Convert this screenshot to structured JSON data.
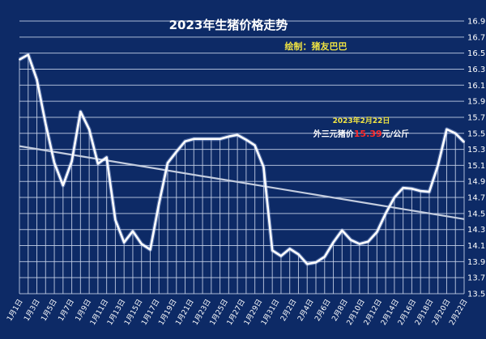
{
  "chart_data": {
    "type": "line",
    "title": "2023年生猪价格走势",
    "subtitle": "绘制：猪友巴巴",
    "annotation": {
      "date_text": "2023年2月22日",
      "price_prefix": "外三元猪价",
      "price_value": "15.39",
      "price_suffix": "元/公斤"
    },
    "xlabel": "",
    "ylabel": "",
    "ylim": [
      13.5,
      16.9
    ],
    "y_ticks": [
      13.5,
      13.7,
      13.9,
      14.1,
      14.3,
      14.5,
      14.7,
      14.9,
      15.1,
      15.3,
      15.5,
      15.7,
      15.9,
      16.1,
      16.3,
      16.5,
      16.7,
      16.9
    ],
    "grid": true,
    "colors": {
      "background": "#0d2a66",
      "grid": "#c9d3ea",
      "line": "#ffffff",
      "trend": "#c4cddf",
      "title": "#ffffff",
      "subtitle": "#f0e442",
      "annotation_text": "#ffffff",
      "annotation_value": "#ff2a2a"
    },
    "x_labels": [
      "1月1日",
      "1月3日",
      "1月5日",
      "1月7日",
      "1月9日",
      "1月11日",
      "1月13日",
      "1月15日",
      "1月17日",
      "1月19日",
      "1月21日",
      "1月23日",
      "1月25日",
      "1月27日",
      "1月29日",
      "1月31日",
      "2月2日",
      "2月4日",
      "2月6日",
      "2月8日",
      "2月10日",
      "2月12日",
      "2月14日",
      "2月16日",
      "2月18日",
      "2月20日",
      "2月22日"
    ],
    "series": [
      {
        "name": "外三元猪价",
        "values": [
          16.42,
          16.48,
          16.17,
          15.62,
          15.13,
          14.85,
          15.15,
          15.77,
          15.55,
          15.12,
          15.2,
          14.42,
          14.14,
          14.28,
          14.12,
          14.05,
          14.62,
          15.13,
          15.27,
          15.4,
          15.43,
          15.43,
          15.43,
          15.43,
          15.46,
          15.48,
          15.42,
          15.35,
          15.08,
          14.04,
          13.97,
          14.06,
          13.99,
          13.87,
          13.89,
          13.96,
          14.14,
          14.29,
          14.17,
          14.12,
          14.15,
          14.27,
          14.5,
          14.7,
          14.82,
          14.81,
          14.78,
          14.77,
          15.1,
          15.55,
          15.5,
          15.39
        ]
      },
      {
        "type": "trend",
        "values": [
          15.34,
          14.43
        ]
      }
    ]
  }
}
